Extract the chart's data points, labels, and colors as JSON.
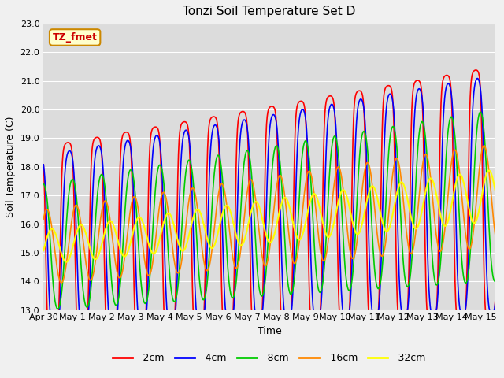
{
  "title": "Tonzi Soil Temperature Set D",
  "xlabel": "Time",
  "ylabel": "Soil Temperature (C)",
  "annotation": "TZ_fmet",
  "ylim": [
    13.0,
    23.0
  ],
  "yticks": [
    13.0,
    14.0,
    15.0,
    16.0,
    17.0,
    18.0,
    19.0,
    20.0,
    21.0,
    22.0,
    23.0
  ],
  "xtick_labels": [
    "Apr 30",
    "May 1",
    "May 2",
    "May 3",
    "May 4",
    "May 5",
    "May 6",
    "May 7",
    "May 8",
    "May 9",
    "May 10",
    "May 11",
    "May 12",
    "May 13",
    "May 14",
    "May 15"
  ],
  "legend_labels": [
    "-2cm",
    "-4cm",
    "-8cm",
    "-16cm",
    "-32cm"
  ],
  "line_colors": [
    "#ff0000",
    "#0000ff",
    "#00cc00",
    "#ff8800",
    "#ffff00"
  ],
  "fig_bg": "#f0f0f0",
  "plot_bg": "#dcdcdc",
  "grid_color": "#ffffff",
  "title_fontsize": 11,
  "axis_fontsize": 9,
  "tick_fontsize": 8,
  "legend_fontsize": 9,
  "annotation_bg": "#ffffcc",
  "annotation_border": "#cc8800",
  "annotation_color": "#cc0000"
}
